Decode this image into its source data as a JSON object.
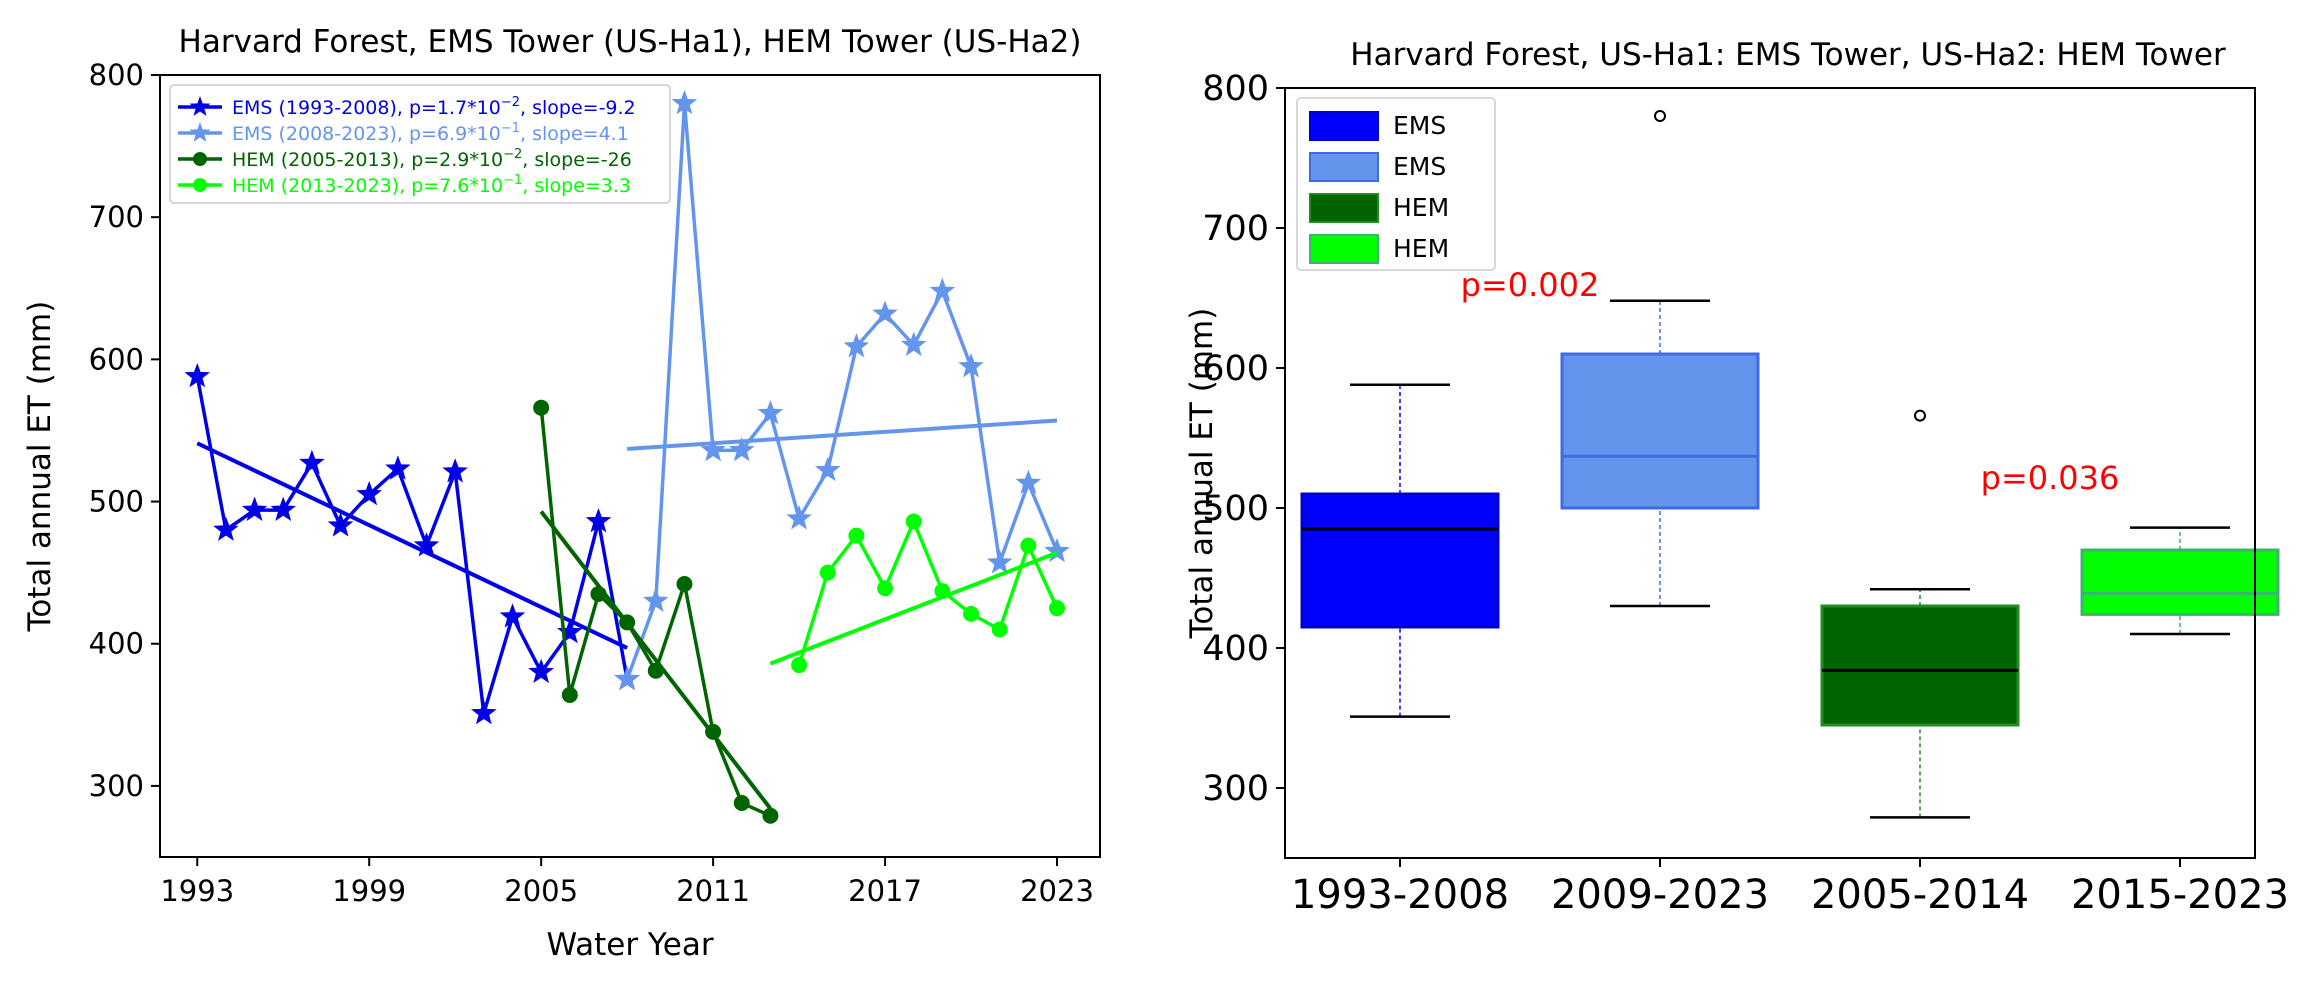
{
  "chart_data": [
    {
      "type": "line",
      "title": "Harvard Forest, EMS Tower (US-Ha1), HEM Tower (US-Ha2)",
      "xlabel": "Water Year",
      "ylabel": "Total annual ET (mm)",
      "xlim": [
        1991.7,
        2024.5
      ],
      "ylim": [
        250,
        800
      ],
      "xticks": [
        1993,
        1999,
        2005,
        2011,
        2017,
        2023
      ],
      "yticks": [
        300,
        400,
        500,
        600,
        700,
        800
      ],
      "legend_position": "top-left",
      "series": [
        {
          "name": "EMS (1993-2008), p=1.7*10",
          "p_exp": "−2",
          "name_suffix": ", slope=-9.2",
          "color": "#0000e8",
          "marker": "star",
          "x": [
            1993,
            1994,
            1995,
            1996,
            1997,
            1998,
            1999,
            2000,
            2001,
            2002,
            2003,
            2004,
            2005,
            2006,
            2007,
            2008
          ],
          "y": [
            588,
            480,
            494,
            494,
            527,
            483,
            505,
            523,
            469,
            521,
            351,
            419,
            380,
            408,
            486,
            375
          ],
          "trend": {
            "x": [
              1993,
              2008
            ],
            "y": [
              541,
              397
            ]
          }
        },
        {
          "name": "EMS (2008-2023), p=6.9*10",
          "p_exp": "−1",
          "name_suffix": ", slope=4.1",
          "color": "#6495ed",
          "marker": "star",
          "x": [
            2008,
            2009,
            2010,
            2011,
            2012,
            2013,
            2014,
            2015,
            2016,
            2017,
            2018,
            2019,
            2020,
            2021,
            2022,
            2023
          ],
          "y": [
            375,
            430,
            780,
            536,
            536,
            562,
            488,
            522,
            609,
            632,
            610,
            648,
            595,
            457,
            513,
            465
          ],
          "trend": {
            "x": [
              2008,
              2023
            ],
            "y": [
              537,
              557
            ]
          }
        },
        {
          "name": "HEM (2005-2013), p=2.9*10",
          "p_exp": "−2",
          "name_suffix": ", slope=-26",
          "color": "#006400",
          "marker": "circle",
          "x": [
            2005,
            2006,
            2007,
            2008,
            2009,
            2010,
            2011,
            2012,
            2013
          ],
          "y": [
            566,
            364,
            435,
            415,
            381,
            442,
            338,
            288,
            279
          ],
          "trend": {
            "x": [
              2005,
              2013
            ],
            "y": [
              493,
              284
            ]
          }
        },
        {
          "name": "HEM (2013-2023), p=7.6*10",
          "p_exp": "−1",
          "name_suffix": ", slope=3.3",
          "color": "#00ff00",
          "marker": "circle",
          "x": [
            2014,
            2015,
            2016,
            2017,
            2018,
            2019,
            2020,
            2021,
            2022,
            2023
          ],
          "y": [
            385,
            450,
            476,
            439,
            486,
            437,
            421,
            410,
            469,
            425
          ],
          "trend": {
            "x": [
              2013,
              2023
            ],
            "y": [
              386,
              464
            ]
          }
        }
      ]
    },
    {
      "type": "box",
      "title": "Harvard Forest, US-Ha1: EMS Tower, US-Ha2: HEM Tower",
      "ylabel": "Total annual ET (mm)",
      "ylim": [
        250,
        800
      ],
      "yticks": [
        300,
        400,
        500,
        600,
        700,
        800
      ],
      "categories": [
        "1993-2008",
        "2009-2023",
        "2005-2014",
        "2015-2023"
      ],
      "legend_position": "top-left",
      "boxes": [
        {
          "name": "EMS",
          "color": "#0000ff",
          "edge": "#0000cc",
          "whisker_color": "#0000ff",
          "median_color": "#000000",
          "min": 351,
          "q1": 415,
          "median": 485,
          "q3": 510,
          "max": 588,
          "outliers": []
        },
        {
          "name": "EMS",
          "color": "#6495ed",
          "edge": "#4169e1",
          "whisker_color": "#4169e1",
          "median_color": "#4169e1",
          "min": 430,
          "q1": 500,
          "median": 537,
          "q3": 610,
          "max": 648,
          "outliers": [
            780
          ]
        },
        {
          "name": "HEM",
          "color": "#006400",
          "edge": "#228b22",
          "whisker_color": "#228b22",
          "median_color": "#000000",
          "min": 279,
          "q1": 345,
          "median": 384,
          "q3": 430,
          "max": 442,
          "outliers": [
            566
          ]
        },
        {
          "name": "HEM",
          "color": "#00ff00",
          "edge": "#3cb371",
          "whisker_color": "#3cb371",
          "median_color": "#3cb371",
          "min": 410,
          "q1": 424,
          "median": 439,
          "q3": 470,
          "max": 486,
          "outliers": []
        }
      ],
      "annotations": [
        {
          "text": "p=0.002",
          "x": 0.5,
          "y": 660,
          "color": "#ff0000"
        },
        {
          "text": "p=0.036",
          "x": 2.5,
          "y": 522,
          "color": "#ff0000"
        }
      ]
    }
  ]
}
